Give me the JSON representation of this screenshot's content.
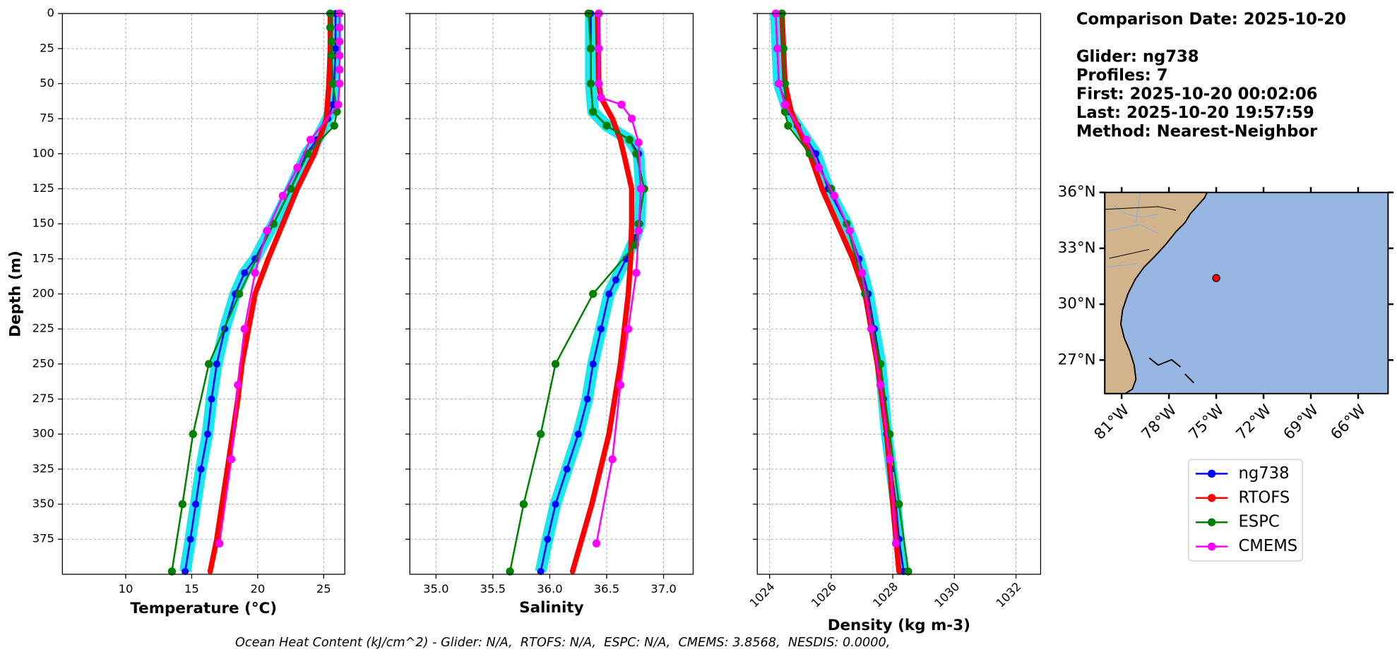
{
  "chart_data": [
    {
      "type": "line",
      "xlabel": "Temperature (°C)",
      "ylabel": "Depth (m)",
      "xlim": [
        5.2,
        26.6
      ],
      "xticks": [
        10,
        15,
        20,
        25
      ],
      "ylim": [
        400,
        0
      ],
      "yticks": [
        0,
        25,
        50,
        75,
        100,
        125,
        150,
        175,
        200,
        225,
        250,
        275,
        300,
        325,
        350,
        375
      ],
      "grid": true,
      "series": [
        {
          "name": "ng738",
          "color": "#0000ff",
          "depths": [
            0,
            25,
            50,
            65,
            75,
            90,
            100,
            125,
            150,
            175,
            185,
            200,
            225,
            250,
            275,
            300,
            325,
            350,
            375,
            398
          ],
          "values": [
            25.9,
            25.9,
            25.8,
            25.7,
            25.3,
            24.5,
            23.7,
            22.5,
            21.2,
            19.8,
            19.0,
            18.3,
            17.5,
            16.9,
            16.5,
            16.2,
            15.7,
            15.3,
            14.9,
            14.5
          ]
        },
        {
          "name": "RTOFS",
          "color": "#ff0000",
          "depths": [
            0,
            25,
            50,
            75,
            100,
            125,
            150,
            175,
            200,
            225,
            250,
            275,
            300,
            325,
            350,
            375,
            398
          ],
          "values": [
            25.5,
            25.5,
            25.4,
            25.2,
            24.3,
            23.0,
            21.9,
            20.8,
            19.8,
            19.3,
            18.8,
            18.5,
            18.1,
            17.7,
            17.3,
            16.9,
            16.4
          ]
        },
        {
          "name": "ESPC",
          "color": "#008000",
          "depths": [
            0,
            10,
            20,
            30,
            50,
            70,
            80,
            100,
            125,
            150,
            200,
            250,
            300,
            350,
            398
          ],
          "values": [
            25.5,
            25.5,
            25.6,
            25.6,
            25.7,
            26.0,
            25.8,
            23.8,
            22.5,
            21.2,
            18.6,
            16.3,
            15.1,
            14.3,
            13.5
          ]
        },
        {
          "name": "CMEMS",
          "color": "#ff00ff",
          "depths": [
            0,
            10,
            20,
            30,
            40,
            50,
            65,
            90,
            110,
            130,
            155,
            185,
            225,
            265,
            318,
            378
          ],
          "values": [
            26.2,
            26.2,
            26.2,
            26.2,
            26.2,
            26.2,
            26.1,
            24.0,
            23.0,
            21.9,
            20.7,
            19.8,
            19.0,
            18.5,
            18.0,
            17.1
          ]
        }
      ]
    },
    {
      "type": "line",
      "xlabel": "Salinity",
      "xlim": [
        34.77,
        37.26
      ],
      "xticks": [
        {
          "value": 35,
          "label": "35.0"
        },
        35.5,
        {
          "value": 36,
          "label": "36.0"
        },
        36.5,
        {
          "value": 37,
          "label": "37.0"
        }
      ],
      "ylim": [
        400,
        0
      ],
      "yticks": [
        0,
        25,
        50,
        75,
        100,
        125,
        150,
        175,
        200,
        225,
        250,
        275,
        300,
        325,
        350,
        375
      ],
      "grid": true,
      "series": [
        {
          "name": "ng738",
          "color": "#0000ff",
          "depths": [
            0,
            25,
            50,
            70,
            80,
            90,
            100,
            125,
            150,
            160,
            175,
            190,
            200,
            225,
            250,
            275,
            300,
            325,
            350,
            375,
            398
          ],
          "values": [
            36.36,
            36.36,
            36.36,
            36.38,
            36.5,
            36.7,
            36.78,
            36.8,
            36.79,
            36.75,
            36.67,
            36.58,
            36.52,
            36.45,
            36.38,
            36.33,
            36.25,
            36.15,
            36.05,
            35.98,
            35.92
          ]
        },
        {
          "name": "RTOFS",
          "color": "#ff0000",
          "depths": [
            0,
            50,
            60,
            75,
            90,
            100,
            125,
            150,
            175,
            200,
            250,
            300,
            350,
            398
          ],
          "values": [
            36.42,
            36.43,
            36.45,
            36.55,
            36.62,
            36.65,
            36.72,
            36.72,
            36.71,
            36.69,
            36.62,
            36.52,
            36.37,
            36.2
          ]
        },
        {
          "name": "ESPC",
          "color": "#008000",
          "depths": [
            0,
            25,
            50,
            70,
            80,
            90,
            100,
            125,
            150,
            165,
            200,
            250,
            300,
            350,
            398
          ],
          "values": [
            36.34,
            36.36,
            36.36,
            36.38,
            36.5,
            36.7,
            36.76,
            36.83,
            36.78,
            36.75,
            36.38,
            36.05,
            35.92,
            35.77,
            35.65
          ]
        },
        {
          "name": "CMEMS",
          "color": "#ff00ff",
          "depths": [
            0,
            25,
            50,
            60,
            65,
            75,
            92,
            125,
            155,
            185,
            225,
            265,
            318,
            378
          ],
          "values": [
            36.43,
            36.43,
            36.43,
            36.45,
            36.63,
            36.72,
            36.78,
            36.8,
            36.78,
            36.76,
            36.69,
            36.62,
            36.55,
            36.41
          ]
        }
      ]
    },
    {
      "type": "line",
      "xlabel": "Density (kg m-3)",
      "xtick_rotation": 45,
      "xlim": [
        1023.6,
        1032.8
      ],
      "xticks": [
        1024,
        1026,
        1028,
        1030,
        1032
      ],
      "ylim": [
        400,
        0
      ],
      "yticks": [
        0,
        25,
        50,
        75,
        100,
        125,
        150,
        175,
        200,
        225,
        250,
        275,
        300,
        325,
        350,
        375
      ],
      "grid": true,
      "series": [
        {
          "name": "ng738",
          "color": "#0000ff",
          "depths": [
            0,
            25,
            50,
            70,
            80,
            100,
            125,
            150,
            175,
            200,
            225,
            250,
            275,
            300,
            325,
            350,
            375,
            398
          ],
          "values": [
            1024.2,
            1024.25,
            1024.3,
            1024.6,
            1024.9,
            1025.5,
            1025.9,
            1026.5,
            1026.9,
            1027.2,
            1027.4,
            1027.6,
            1027.7,
            1027.8,
            1027.95,
            1028.1,
            1028.2,
            1028.35
          ]
        },
        {
          "name": "RTOFS",
          "color": "#ff0000",
          "depths": [
            0,
            50,
            70,
            100,
            125,
            150,
            175,
            200,
            250,
            300,
            350,
            398
          ],
          "values": [
            1024.4,
            1024.5,
            1024.7,
            1025.3,
            1025.7,
            1026.2,
            1026.7,
            1027.1,
            1027.5,
            1027.8,
            1028.0,
            1028.2
          ]
        },
        {
          "name": "ESPC",
          "color": "#008000",
          "depths": [
            0,
            25,
            50,
            70,
            80,
            100,
            125,
            150,
            200,
            250,
            300,
            350,
            398
          ],
          "values": [
            1024.4,
            1024.45,
            1024.5,
            1024.5,
            1024.6,
            1025.3,
            1026.0,
            1026.5,
            1027.1,
            1027.6,
            1027.9,
            1028.2,
            1028.5
          ]
        },
        {
          "name": "CMEMS",
          "color": "#ff00ff",
          "depths": [
            0,
            25,
            50,
            65,
            90,
            110,
            130,
            155,
            185,
            225,
            265,
            318,
            378
          ],
          "values": [
            1024.2,
            1024.25,
            1024.3,
            1024.5,
            1025.2,
            1025.6,
            1026.1,
            1026.6,
            1027.0,
            1027.3,
            1027.6,
            1027.9,
            1028.1
          ]
        }
      ]
    }
  ],
  "info": [
    "Comparison Date: 2025-10-20",
    "Glider: ng738",
    "Profiles: 7",
    "First: 2025-10-20 00:02:06",
    "Last: 2025-10-20 19:57:59",
    "Method: Nearest-Neighbor"
  ],
  "map": {
    "lonlim": [
      -82.07,
      -64.1
    ],
    "latlim": [
      25.2,
      36
    ],
    "lonticks": [
      {
        "value": -81,
        "label": "81°W"
      },
      {
        "value": -78,
        "label": "78°W"
      },
      {
        "value": -75,
        "label": "75°W"
      },
      {
        "value": -72,
        "label": "72°W"
      },
      {
        "value": -69,
        "label": "69°W"
      },
      {
        "value": -66,
        "label": "66°W"
      }
    ],
    "latticks": [
      {
        "value": 36,
        "label": "36°N"
      },
      {
        "value": 33,
        "label": "33°N"
      },
      {
        "value": 30,
        "label": "30°N"
      },
      {
        "value": 27,
        "label": "27°N"
      }
    ],
    "point": {
      "lon": -75,
      "lat": 31.4,
      "color": "#ff0000"
    }
  },
  "footer": "Ocean Heat Content (kJ/cm^2) - Glider: N/A,  RTOFS: N/A,  ESPC: N/A,  CMEMS: 3.8568,  NESDIS: 0.0000,"
}
